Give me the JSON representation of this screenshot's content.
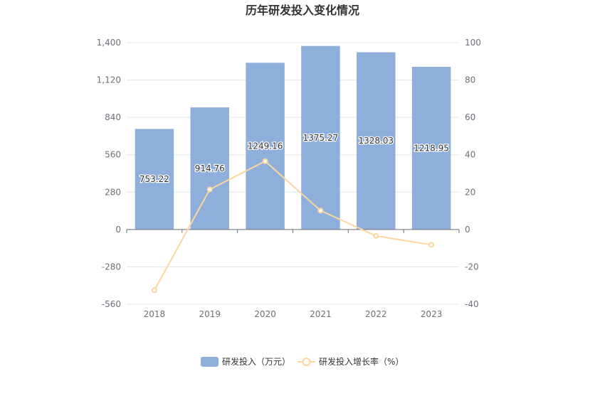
{
  "chart_data": {
    "type": "bar",
    "title": "历年研发投入变化情况",
    "categories": [
      "2018",
      "2019",
      "2020",
      "2021",
      "2022",
      "2023"
    ],
    "series": [
      {
        "name": "研发投入（万元）",
        "type": "bar",
        "axis": "left",
        "color": "#8eaedb",
        "values": [
          753.22,
          914.76,
          1249.16,
          1375.27,
          1328.03,
          1218.95
        ],
        "labels": [
          "753.22",
          "914.76",
          "1249.16",
          "1375.27",
          "1328.03",
          "1218.95"
        ]
      },
      {
        "name": "研发投入增长率（%）",
        "type": "line",
        "axis": "right",
        "color": "#fcd69c",
        "values": [
          -32.5,
          21.45,
          36.56,
          10.1,
          -3.43,
          -8.21
        ]
      }
    ],
    "y_left": {
      "ylim": [
        -560,
        1400
      ],
      "ticks": [
        "-560",
        "-280",
        "0",
        "280",
        "560",
        "840",
        "1,120",
        "1,400"
      ]
    },
    "y_right": {
      "ylim": [
        -40,
        100
      ],
      "ticks": [
        "-40",
        "-20",
        "0",
        "20",
        "40",
        "60",
        "80",
        "100"
      ]
    },
    "grid": true,
    "legend": "bottom"
  }
}
